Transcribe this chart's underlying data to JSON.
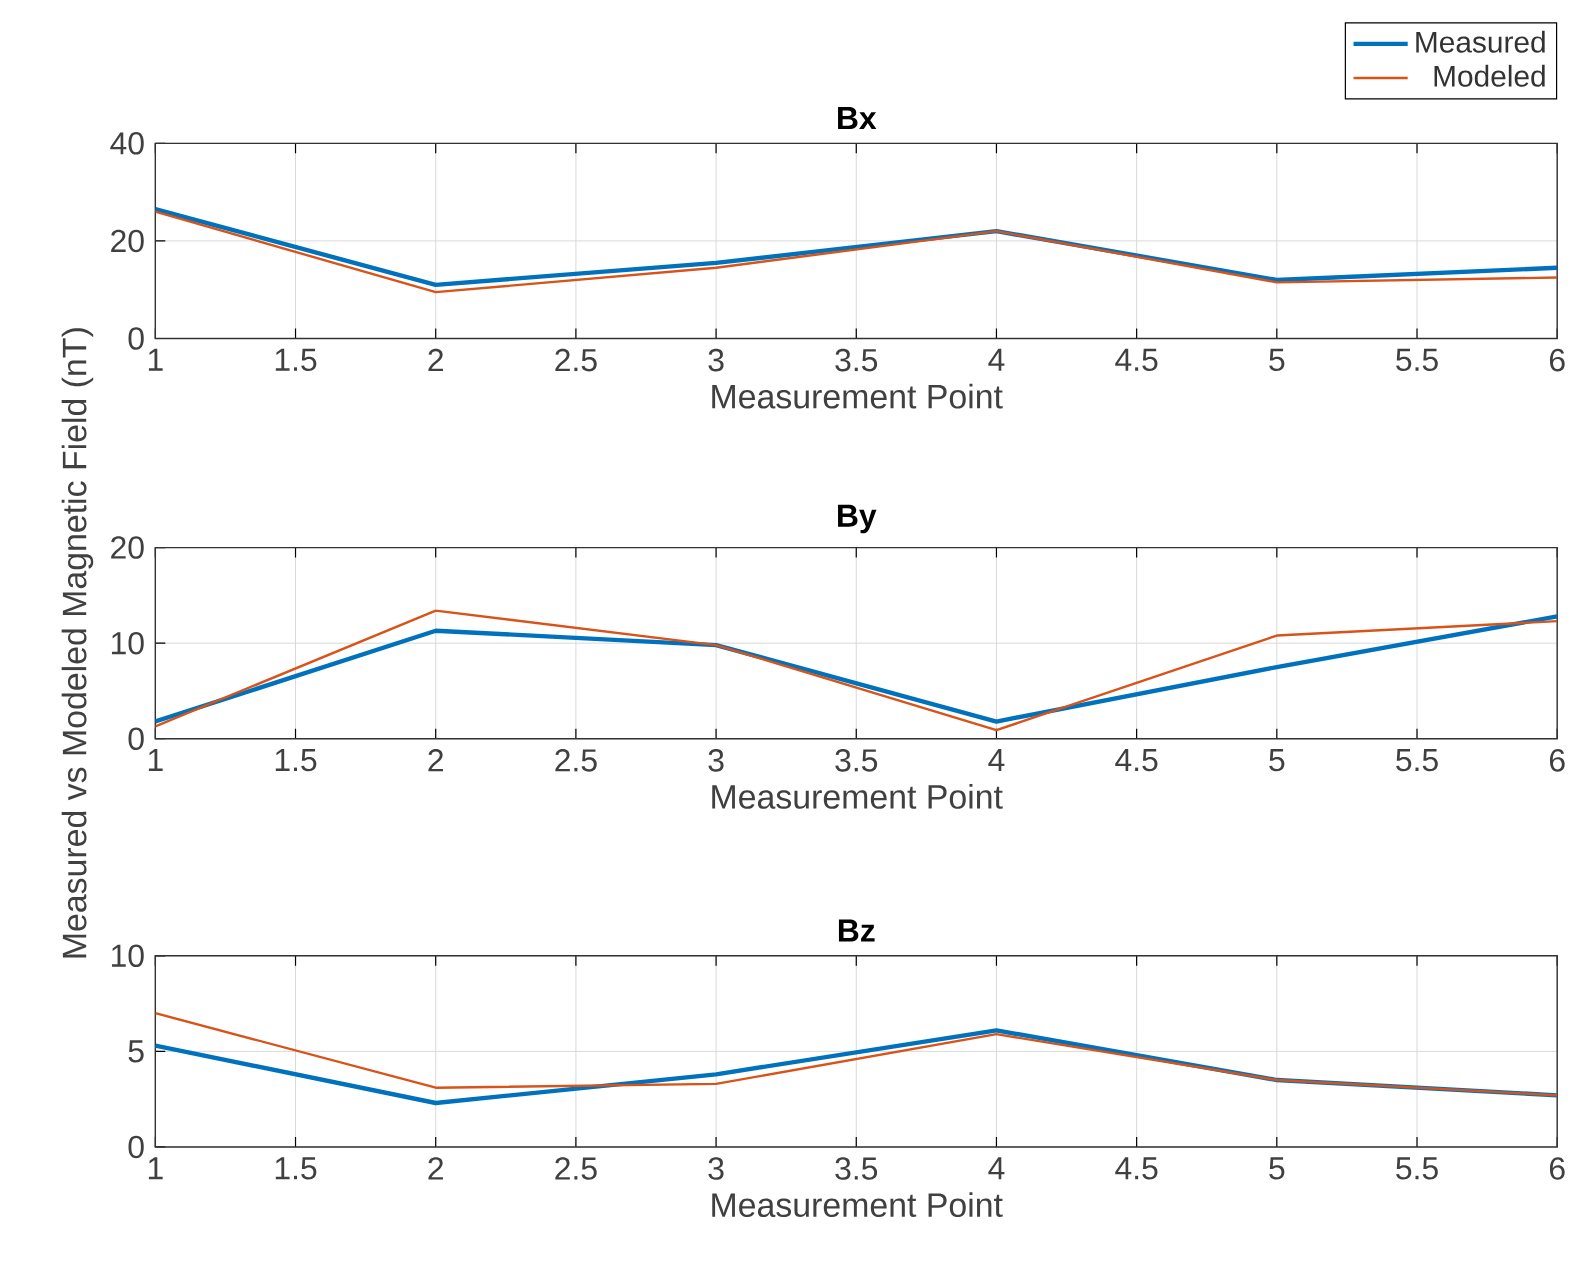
{
  "chart_data": [
    {
      "type": "line",
      "title": "Bx",
      "xlabel": "Measurement Point",
      "x": [
        1,
        2,
        3,
        4,
        5,
        6
      ],
      "xlim": [
        1,
        6
      ],
      "xticks": [
        1,
        1.5,
        2,
        2.5,
        3,
        3.5,
        4,
        4.5,
        5,
        5.5,
        6
      ],
      "ylim": [
        0,
        40
      ],
      "yticks": [
        0,
        20,
        40
      ],
      "grid": true,
      "legend": "top right",
      "series": [
        {
          "name": "Measured",
          "color": "#0072bd",
          "values": [
            26.5,
            11,
            15.5,
            22,
            12,
            14.5
          ]
        },
        {
          "name": "Modeled",
          "color": "#d95319",
          "values": [
            26,
            9.5,
            14.5,
            22,
            11.5,
            12.5
          ]
        }
      ]
    },
    {
      "type": "line",
      "title": "By",
      "xlabel": "Measurement Point",
      "ylabel": "Measured vs Modeled Magnetic Field (nT)",
      "x": [
        1,
        2,
        3,
        4,
        5,
        6
      ],
      "xlim": [
        1,
        6
      ],
      "xticks": [
        1,
        1.5,
        2,
        2.5,
        3,
        3.5,
        4,
        4.5,
        5,
        5.5,
        6
      ],
      "ylim": [
        0,
        20
      ],
      "yticks": [
        0,
        10,
        20
      ],
      "grid": true,
      "series": [
        {
          "color": "#0072bd",
          "values": [
            1.8,
            11.3,
            9.8,
            1.8,
            7.5,
            12.8
          ]
        },
        {
          "color": "#d95319",
          "values": [
            1.3,
            13.4,
            9.8,
            0.9,
            10.8,
            12.3
          ]
        }
      ]
    },
    {
      "type": "line",
      "title": "Bz",
      "xlabel": "Measurement Point",
      "x": [
        1,
        2,
        3,
        4,
        5,
        6
      ],
      "xlim": [
        1,
        6
      ],
      "xticks": [
        1,
        1.5,
        2,
        2.5,
        3,
        3.5,
        4,
        4.5,
        5,
        5.5,
        6
      ],
      "ylim": [
        0,
        10
      ],
      "yticks": [
        0,
        5,
        10
      ],
      "grid": true,
      "series": [
        {
          "color": "#0072bd",
          "values": [
            5.3,
            2.3,
            3.8,
            6.1,
            3.5,
            2.7
          ]
        },
        {
          "color": "#d95319",
          "values": [
            7.0,
            3.1,
            3.3,
            5.9,
            3.5,
            2.7
          ]
        }
      ]
    }
  ]
}
